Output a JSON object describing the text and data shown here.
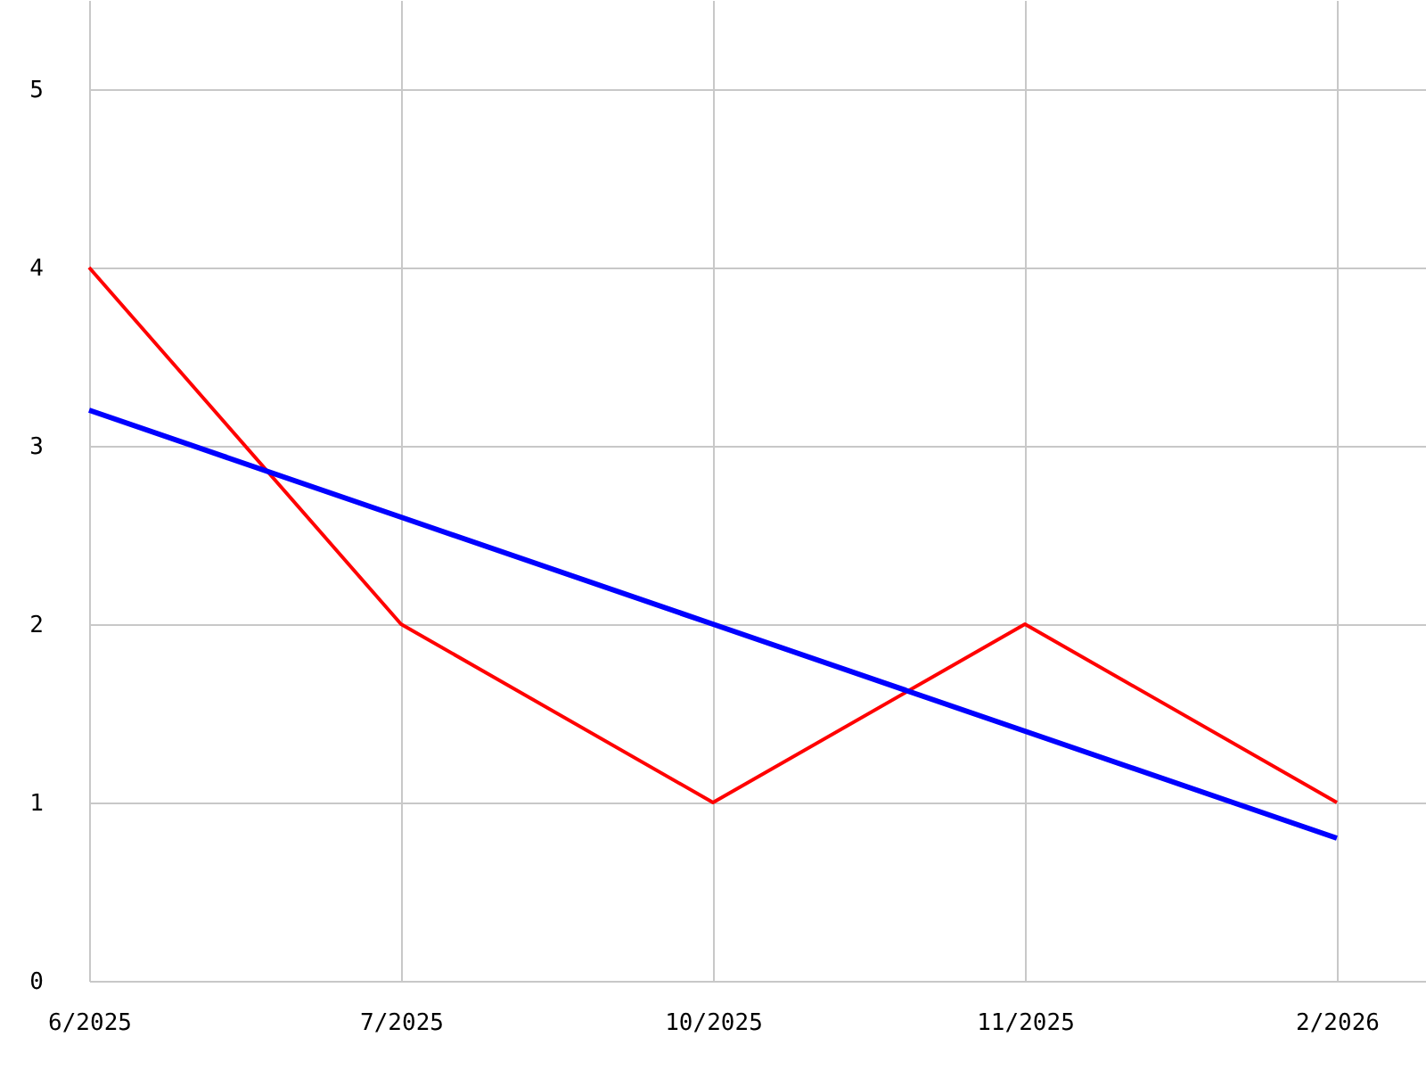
{
  "chart_data": {
    "type": "line",
    "categories": [
      "6/2025",
      "7/2025",
      "10/2025",
      "11/2025",
      "2/2026"
    ],
    "series": [
      {
        "color": "#ff0000",
        "values": [
          4,
          2,
          1,
          2,
          1
        ]
      },
      {
        "type": "line",
        "color": "#0000ff",
        "values": [
          3.2,
          2.6,
          2.0,
          1.4,
          0.8
        ]
      }
    ],
    "ylim": [
      0,
      5.5
    ],
    "yticks": [
      0,
      1,
      2,
      3,
      4,
      5
    ],
    "grid": true
  }
}
